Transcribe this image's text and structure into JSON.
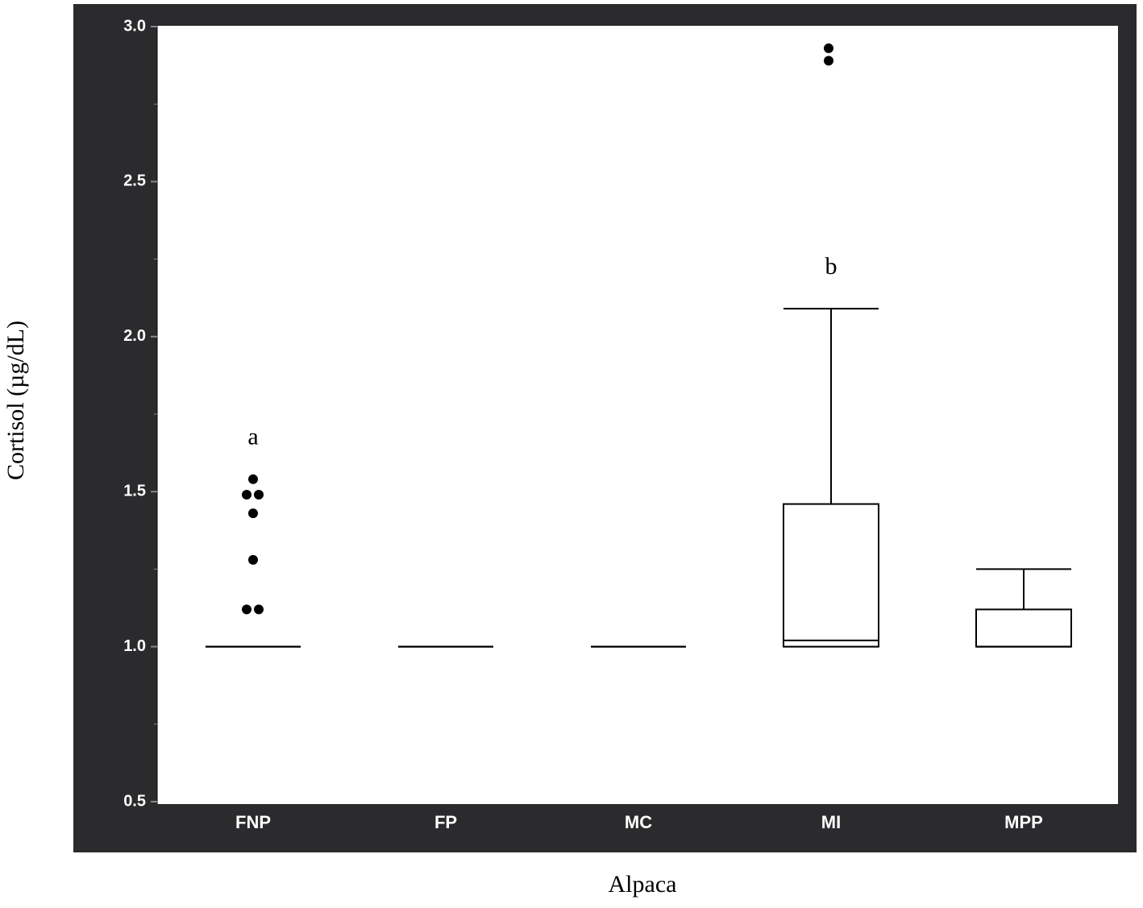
{
  "chart_data": {
    "type": "box",
    "x_label": "Alpaca",
    "y_label": "Cortisol (µg/dL)",
    "categories": [
      "FNP",
      "FP",
      "MC",
      "MI",
      "MPP"
    ],
    "boxes": [
      {
        "min": 1.0,
        "q1": 1.0,
        "median": 1.0,
        "q3": 1.0,
        "max": 1.0,
        "outliers": [
          1.54,
          1.49,
          1.49,
          1.43,
          1.28,
          1.12,
          1.12
        ]
      },
      {
        "min": 1.0,
        "q1": 1.0,
        "median": 1.0,
        "q3": 1.0,
        "max": 1.0,
        "outliers": []
      },
      {
        "min": 1.0,
        "q1": 1.0,
        "median": 1.0,
        "q3": 1.0,
        "max": 1.0,
        "outliers": []
      },
      {
        "min": 1.0,
        "q1": 1.0,
        "median": 1.02,
        "q3": 1.46,
        "max": 2.09,
        "outliers": [
          2.93,
          2.89
        ]
      },
      {
        "min": 1.0,
        "q1": 1.0,
        "median": 1.0,
        "q3": 1.12,
        "max": 1.25,
        "outliers": []
      }
    ],
    "annotations": [
      {
        "text": "a",
        "category": 0
      },
      {
        "text": "b",
        "category": 3
      }
    ],
    "ylim": [
      0.5,
      3.0
    ],
    "yticks": [
      {
        "value": 0.5,
        "label": "0.5"
      },
      {
        "value": 1.0,
        "label": "1.0"
      },
      {
        "value": 1.5,
        "label": "1.5"
      },
      {
        "value": 2.0,
        "label": "2.0"
      },
      {
        "value": 2.5,
        "label": "2.5"
      },
      {
        "value": 3.0,
        "label": "3.0"
      }
    ],
    "yminorticks": [
      0.75,
      1.25,
      1.75,
      2.25,
      2.75
    ]
  }
}
